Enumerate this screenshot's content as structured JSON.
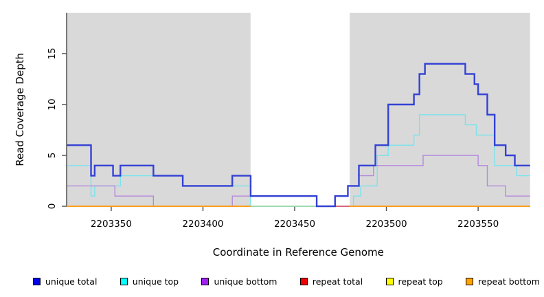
{
  "chart_data": {
    "type": "line",
    "subtype": "step-coverage",
    "title": "",
    "xlabel": "Coordinate in Reference Genome",
    "ylabel": "Read Coverage Depth",
    "xlim": [
      2203325.7,
      2203578.3
    ],
    "ylim": [
      0,
      19
    ],
    "x_ticks": [
      2203350,
      2203400,
      2203450,
      2203500,
      2203550
    ],
    "y_ticks": [
      0,
      5,
      10,
      15
    ],
    "grid": false,
    "legend_position": "bottom",
    "background_bands": [
      {
        "from": 2203325.7,
        "to": 2203426,
        "color": "#d9d9d9"
      },
      {
        "from": 2203426,
        "to": 2203480,
        "color": "#ffffff"
      },
      {
        "from": 2203480,
        "to": 2203578.3,
        "color": "#d9d9d9"
      }
    ],
    "series": [
      {
        "name": "unique total",
        "color": "#3341d4",
        "legend_color": "#0000ee",
        "width": 2.4,
        "steps": [
          [
            2203326,
            6
          ],
          [
            2203339,
            3
          ],
          [
            2203341,
            4
          ],
          [
            2203351,
            3
          ],
          [
            2203355,
            4
          ],
          [
            2203373,
            3
          ],
          [
            2203389,
            2
          ],
          [
            2203416,
            3
          ],
          [
            2203426,
            1
          ],
          [
            2203462,
            0
          ],
          [
            2203472,
            1
          ],
          [
            2203479,
            2
          ],
          [
            2203485,
            4
          ],
          [
            2203494,
            6
          ],
          [
            2203501,
            10
          ],
          [
            2203515,
            11
          ],
          [
            2203518,
            13
          ],
          [
            2203521,
            14
          ],
          [
            2203543,
            13
          ],
          [
            2203548,
            12
          ],
          [
            2203550,
            11
          ],
          [
            2203555,
            9
          ],
          [
            2203559,
            6
          ],
          [
            2203565,
            5
          ],
          [
            2203570,
            4
          ]
        ]
      },
      {
        "name": "unique top",
        "color": "#79e3ec",
        "legend_color": "#00ffff",
        "width": 1.4,
        "steps": [
          [
            2203326,
            4
          ],
          [
            2203339,
            1
          ],
          [
            2203341,
            2
          ],
          [
            2203355,
            3
          ],
          [
            2203389,
            2
          ],
          [
            2203426,
            0
          ],
          [
            2203482,
            1
          ],
          [
            2203486,
            2
          ],
          [
            2203495,
            5
          ],
          [
            2203501,
            6
          ],
          [
            2203515,
            7
          ],
          [
            2203518,
            9
          ],
          [
            2203543,
            8
          ],
          [
            2203549,
            7
          ],
          [
            2203559,
            4
          ],
          [
            2203571,
            3
          ]
        ]
      },
      {
        "name": "unique bottom",
        "color": "#b588dd",
        "legend_color": "#a020f0",
        "width": 1.4,
        "steps": [
          [
            2203326,
            2
          ],
          [
            2203352,
            1
          ],
          [
            2203373,
            0
          ],
          [
            2203416,
            1
          ],
          [
            2203462,
            0
          ],
          [
            2203472,
            1
          ],
          [
            2203479,
            2
          ],
          [
            2203485,
            3
          ],
          [
            2203493,
            4
          ],
          [
            2203520,
            5
          ],
          [
            2203550,
            4
          ],
          [
            2203555,
            2
          ],
          [
            2203565,
            1
          ]
        ]
      },
      {
        "name": "repeat total",
        "color": "#dd3a57",
        "legend_color": "#ee0000",
        "width": 1.4,
        "steps": [
          [
            2203326,
            0
          ]
        ]
      },
      {
        "name": "repeat top",
        "color": "#f0e040",
        "legend_color": "#ffff00",
        "width": 1.4,
        "steps": [
          [
            2203326,
            0
          ]
        ]
      },
      {
        "name": "repeat bottom",
        "color": "#ff9e1c",
        "legend_color": "#ffa500",
        "width": 2,
        "steps": [
          [
            2203326,
            0
          ]
        ]
      }
    ],
    "baseline_segments": [
      {
        "from": 2203325.7,
        "to": 2203426,
        "color": "#ff9e1c",
        "width": 2.0
      },
      {
        "from": 2203426,
        "to": 2203462,
        "color": "#90d69c",
        "width": 1.5
      },
      {
        "from": 2203472,
        "to": 2203480,
        "color": "#dd3a57",
        "width": 1.5
      },
      {
        "from": 2203480,
        "to": 2203578.3,
        "color": "#ff9e1c",
        "width": 2.0
      }
    ]
  }
}
